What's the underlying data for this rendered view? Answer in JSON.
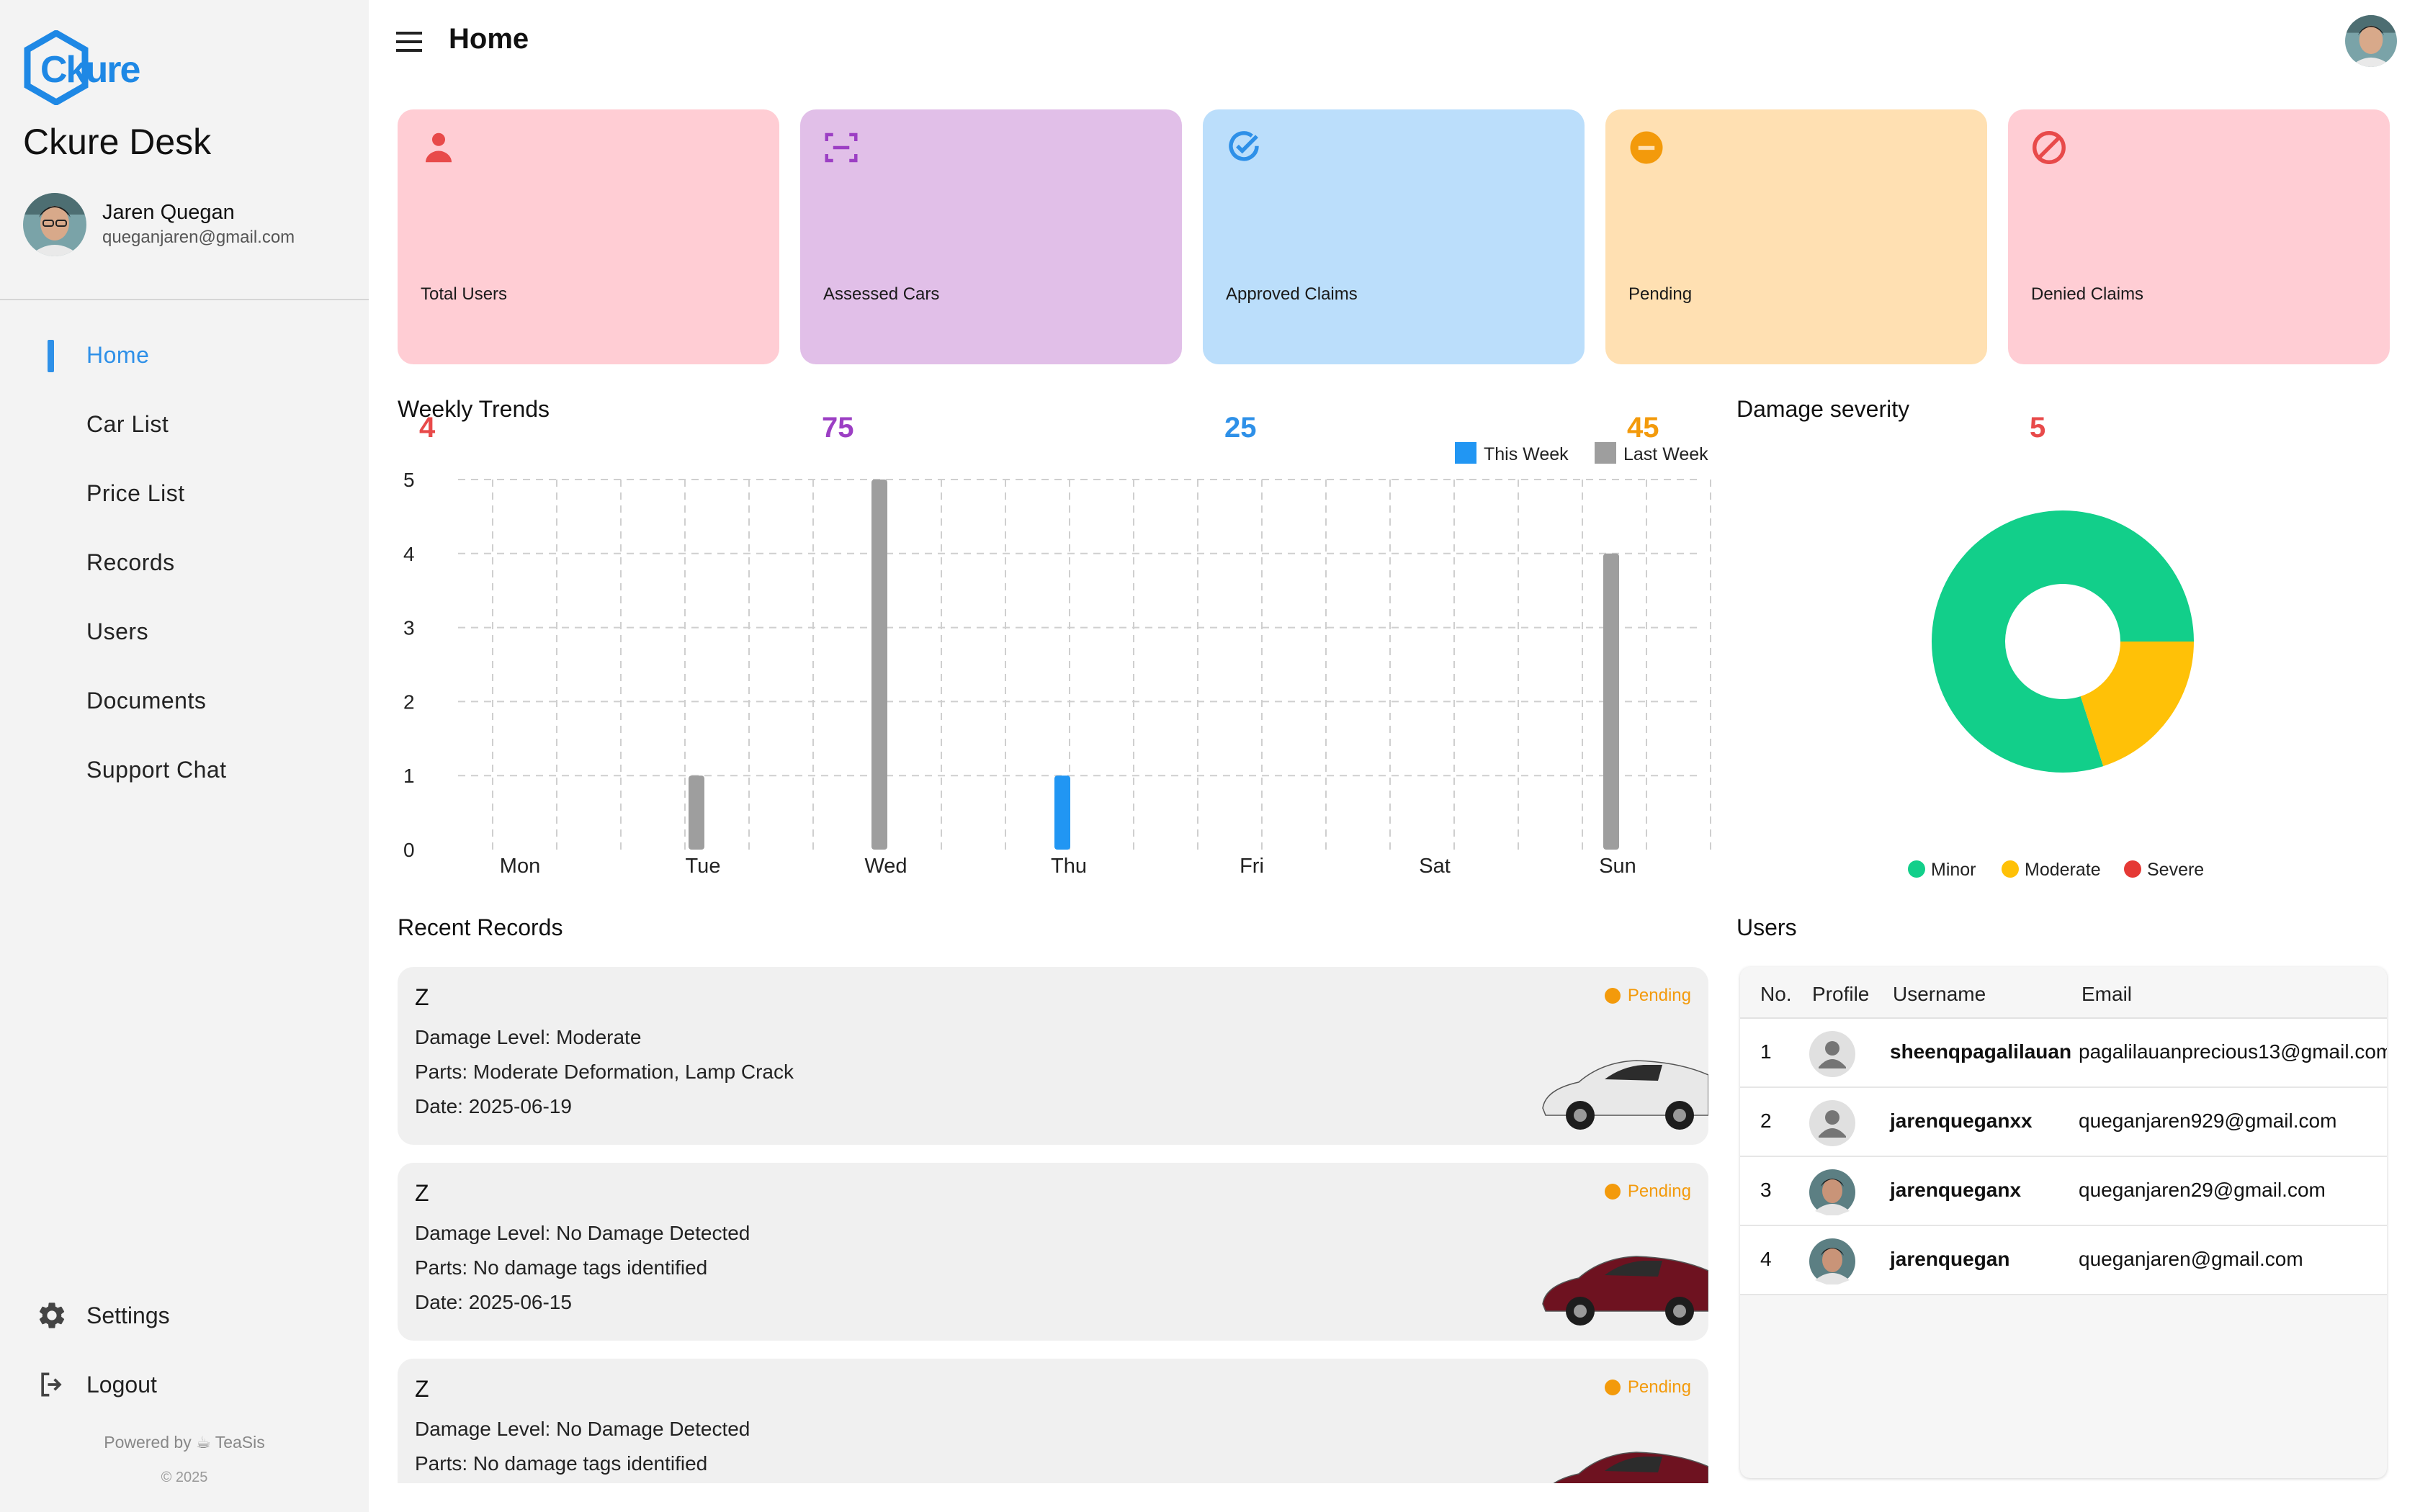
{
  "app": {
    "name": "Ckure Desk",
    "logo_text": "Ckure",
    "user_name": "Jaren Quegan",
    "user_email": "queganjaren@gmail.com"
  },
  "sidebar": {
    "items": [
      {
        "label": "Home",
        "active": true
      },
      {
        "label": "Car List"
      },
      {
        "label": "Price List"
      },
      {
        "label": "Records"
      },
      {
        "label": "Users"
      },
      {
        "label": "Documents"
      },
      {
        "label": "Support Chat"
      }
    ],
    "settings_label": "Settings",
    "logout_label": "Logout",
    "powered_by": "Powered by ☕ TeaSis",
    "copyright": "© 2025"
  },
  "header": {
    "title": "Home"
  },
  "stats": [
    {
      "label": "Total Users",
      "value": "4",
      "bg": "#ffcdd4",
      "accent": "#e84a4a",
      "icon": "user-icon"
    },
    {
      "label": "Assessed Cars",
      "value": "75",
      "bg": "#e1bfe8",
      "accent": "#9c3fc4",
      "icon": "scan-icon"
    },
    {
      "label": "Approved Claims",
      "value": "25",
      "bg": "#bbdefb",
      "accent": "#2e90e8",
      "icon": "check-circle-icon"
    },
    {
      "label": "Pending",
      "value": "45",
      "bg": "#ffe0b2",
      "accent": "#f39a0b",
      "icon": "minus-circle-icon"
    },
    {
      "label": "Denied Claims",
      "value": "5",
      "bg": "#ffcdd4",
      "accent": "#e84a4a",
      "icon": "block-icon"
    }
  ],
  "weekly": {
    "title": "Weekly Trends"
  },
  "damage": {
    "title": "Damage severity"
  },
  "chart_data": [
    {
      "type": "bar",
      "title": "Weekly Trends",
      "categories": [
        "Mon",
        "Tue",
        "Wed",
        "Thu",
        "Fri",
        "Sat",
        "Sun"
      ],
      "series": [
        {
          "name": "This Week",
          "color": "#2196f3",
          "values": [
            0,
            0,
            0,
            1,
            0,
            0,
            0
          ]
        },
        {
          "name": "Last Week",
          "color": "#9e9e9e",
          "values": [
            0,
            1,
            5,
            0,
            0,
            0,
            4
          ]
        }
      ],
      "ylim": [
        0,
        5
      ],
      "yticks": [
        0,
        1,
        2,
        3,
        4,
        5
      ],
      "grid": true,
      "legend": "top-right"
    },
    {
      "type": "pie",
      "title": "Damage severity",
      "donut": true,
      "labels": [
        "Minor",
        "Moderate",
        "Severe"
      ],
      "values": [
        80,
        20,
        0
      ],
      "colors": [
        "#12cf8a",
        "#ffc107",
        "#e53935"
      ],
      "legend": "bottom"
    }
  ],
  "records": {
    "title": "Recent Records",
    "items": [
      {
        "name": "Z",
        "status": "Pending",
        "damage": "Damage Level: Moderate",
        "parts": "Parts: Moderate Deformation, Lamp Crack",
        "date": "Date: 2025-06-19",
        "car_color": "#e8e8e8"
      },
      {
        "name": "Z",
        "status": "Pending",
        "damage": "Damage Level: No Damage Detected",
        "parts": "Parts: No damage tags identified",
        "date": "Date: 2025-06-15",
        "car_color": "#6e1220"
      },
      {
        "name": "Z",
        "status": "Pending",
        "damage": "Damage Level: No Damage Detected",
        "parts": "Parts: No damage tags identified",
        "date": "",
        "car_color": "#6e1220"
      }
    ]
  },
  "users": {
    "title": "Users",
    "headers": [
      "No.",
      "Profile",
      "Username",
      "Email"
    ],
    "rows": [
      {
        "no": "1",
        "username": "sheenqpagalilauan",
        "email": "pagalilauanprecious13@gmail.com",
        "photo": false
      },
      {
        "no": "2",
        "username": "jarenqueganxx",
        "email": "queganjaren929@gmail.com",
        "photo": false
      },
      {
        "no": "3",
        "username": "jarenqueganx",
        "email": "queganjaren29@gmail.com",
        "photo": true
      },
      {
        "no": "4",
        "username": "jarenquegan",
        "email": "queganjaren@gmail.com",
        "photo": true
      }
    ]
  }
}
